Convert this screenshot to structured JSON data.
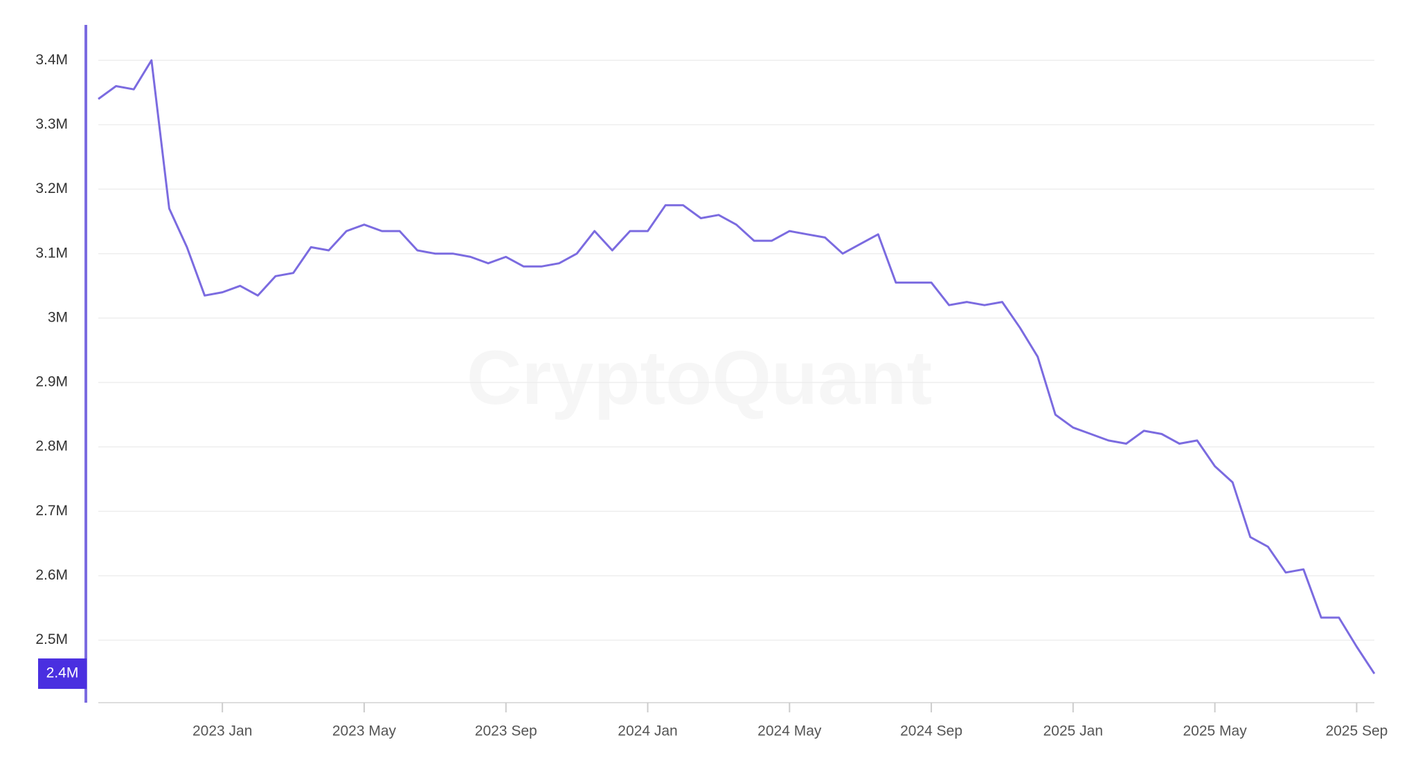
{
  "chart_data": {
    "type": "line",
    "watermark": "CryptoQuant",
    "categories": [
      null,
      null,
      null,
      null,
      null,
      null,
      null,
      "2023 Jan",
      null,
      null,
      null,
      null,
      null,
      null,
      null,
      "2023 May",
      null,
      null,
      null,
      null,
      null,
      null,
      null,
      "2023 Sep",
      null,
      null,
      null,
      null,
      null,
      null,
      null,
      "2024 Jan",
      null,
      null,
      null,
      null,
      null,
      null,
      null,
      "2024 May",
      null,
      null,
      null,
      null,
      null,
      null,
      null,
      "2024 Sep",
      null,
      null,
      null,
      null,
      null,
      null,
      null,
      "2025 Jan",
      null,
      null,
      null,
      null,
      null,
      null,
      null,
      "2025 May",
      null,
      null,
      null,
      null,
      null,
      null,
      null,
      "2025 Sep",
      null
    ],
    "series": [
      {
        "color": "#7b6be0",
        "values": [
          3340000,
          3360000,
          3355000,
          3400000,
          3170000,
          3110000,
          3035000,
          3040000,
          3050000,
          3035000,
          3065000,
          3070000,
          3110000,
          3105000,
          3135000,
          3145000,
          3135000,
          3135000,
          3105000,
          3100000,
          3100000,
          3095000,
          3085000,
          3095000,
          3080000,
          3080000,
          3085000,
          3100000,
          3135000,
          3105000,
          3135000,
          3135000,
          3175000,
          3175000,
          3155000,
          3160000,
          3145000,
          3120000,
          3120000,
          3135000,
          3130000,
          3125000,
          3100000,
          3115000,
          3130000,
          3055000,
          3055000,
          3055000,
          3020000,
          3025000,
          3020000,
          3025000,
          2985000,
          2940000,
          2850000,
          2830000,
          2820000,
          2810000,
          2805000,
          2825000,
          2820000,
          2805000,
          2810000,
          2770000,
          2745000,
          2660000,
          2645000,
          2605000,
          2610000,
          2535000,
          2535000,
          2490000,
          2448000
        ]
      }
    ],
    "current_label": "2.4M",
    "ylim": [
      2403000,
      3455000
    ],
    "yticks": [
      {
        "value": 2500000,
        "label": "2.5M"
      },
      {
        "value": 2600000,
        "label": "2.6M"
      },
      {
        "value": 2700000,
        "label": "2.7M"
      },
      {
        "value": 2800000,
        "label": "2.8M"
      },
      {
        "value": 2900000,
        "label": "2.9M"
      },
      {
        "value": 3000000,
        "label": "3M"
      },
      {
        "value": 3100000,
        "label": "3.1M"
      },
      {
        "value": 3200000,
        "label": "3.2M"
      },
      {
        "value": 3300000,
        "label": "3.3M"
      },
      {
        "value": 3400000,
        "label": "3.4M"
      }
    ],
    "grid": true
  }
}
